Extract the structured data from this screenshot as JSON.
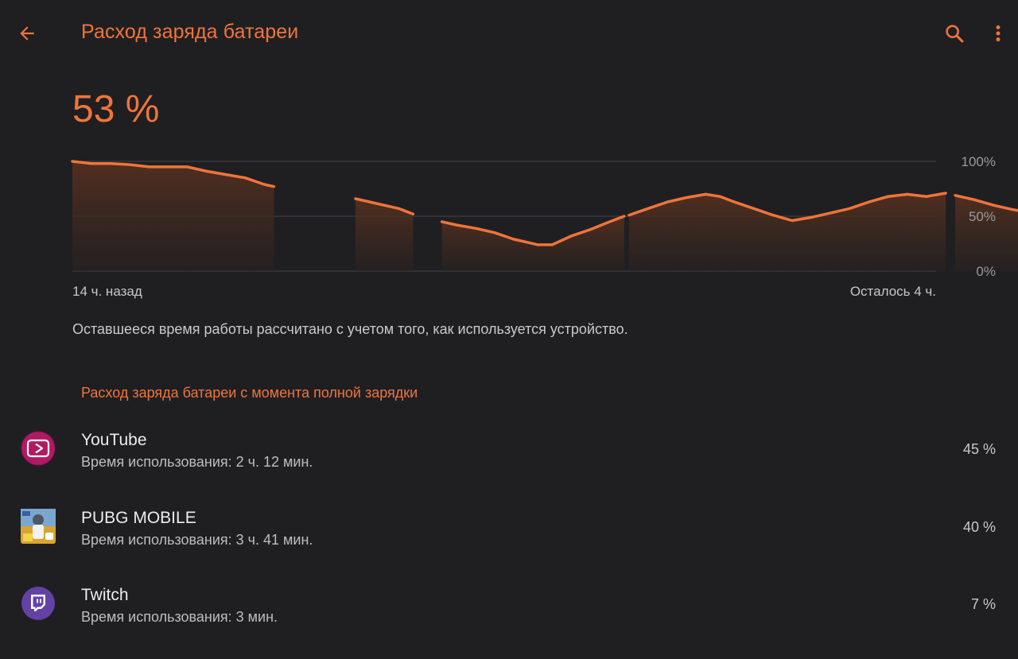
{
  "header": {
    "title": "Расход заряда батареи",
    "back_icon": "arrow-left-icon",
    "search_icon": "search-icon",
    "more_icon": "more-vert-icon",
    "accent_color": "#f0743a"
  },
  "battery": {
    "level": "53 %"
  },
  "chart_data": {
    "type": "line",
    "title": "",
    "xlabel": "",
    "ylabel": "",
    "ylim": [
      0,
      100
    ],
    "y_ticks": [
      "100%",
      "50%",
      "0%"
    ],
    "x_start_label": "14 ч. назад",
    "x_end_label": "Осталось 4 ч.",
    "x_range_hours": [
      -14,
      4
    ],
    "grid": true,
    "series": [
      {
        "segments": [
          {
            "x": [
              -14.0,
              -13.6,
              -13.2,
              -12.8,
              -12.4,
              -12.0,
              -11.6,
              -11.2,
              -10.8,
              -10.4,
              -10.0,
              -9.8
            ],
            "y": [
              100,
              98,
              98,
              97,
              95,
              95,
              95,
              91,
              88,
              85,
              79,
              77
            ]
          },
          {
            "x": [
              -8.1,
              -7.6,
              -7.2,
              -6.9
            ],
            "y": [
              66,
              61,
              57,
              52
            ]
          },
          {
            "x": [
              -6.3,
              -6.0,
              -5.6,
              -5.2,
              -4.8,
              -4.5,
              -4.3,
              -4.0,
              -3.6,
              -3.2,
              -2.8,
              -2.5
            ],
            "y": [
              45,
              42,
              39,
              35,
              29,
              26,
              24,
              24,
              32,
              38,
              45,
              50
            ]
          },
          {
            "x": [
              -2.4,
              -2.0,
              -1.6,
              -1.2,
              -0.8,
              -0.5,
              -0.2,
              0.2,
              0.6,
              1.0,
              1.4,
              1.8,
              2.2,
              2.6,
              3.0,
              3.4,
              3.8,
              4.2
            ],
            "y": [
              51,
              57,
              63,
              67,
              70,
              68,
              63,
              57,
              51,
              46,
              49,
              53,
              57,
              63,
              68,
              70,
              68,
              71
            ]
          },
          {
            "x": [
              4.4,
              4.8,
              5.2,
              5.6,
              6.0
            ],
            "y": [
              69,
              65,
              60,
              56,
              53
            ]
          }
        ]
      }
    ]
  },
  "note": "Оставшееся время работы рассчитано с учетом того, как используется устройство.",
  "section_title": "Расход заряда батареи с момента полной зарядки",
  "apps": [
    {
      "name": "YouTube",
      "usage": "Время использования: 2 ч. 12 мин.",
      "percent": "45 %",
      "icon": "youtube-icon"
    },
    {
      "name": "PUBG MOBILE",
      "usage": "Время использования: 3 ч. 41 мин.",
      "percent": "40 %",
      "icon": "pubg-icon"
    },
    {
      "name": "Twitch",
      "usage": "Время использования: 3 мин.",
      "percent": "7 %",
      "icon": "twitch-icon"
    }
  ]
}
